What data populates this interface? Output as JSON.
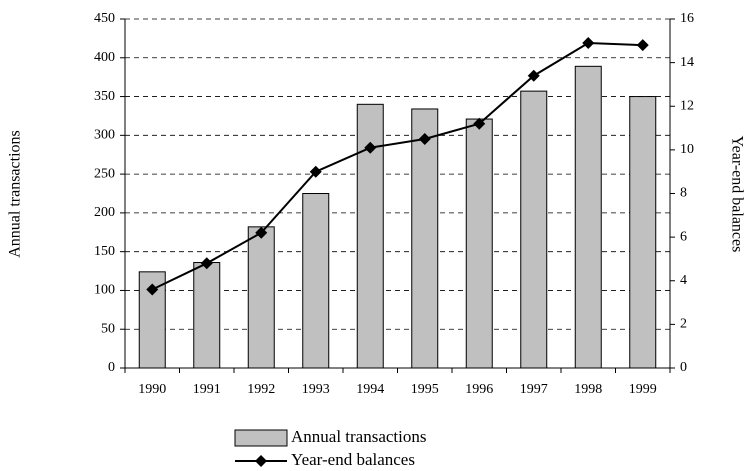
{
  "chart_data": {
    "type": "bar_line",
    "categories": [
      "1990",
      "1991",
      "1992",
      "1993",
      "1994",
      "1995",
      "1996",
      "1997",
      "1998",
      "1999"
    ],
    "ylabel": "Annual transactions",
    "y2label": "Year-end balances",
    "ylim": [
      0,
      450
    ],
    "yticks": [
      0,
      50,
      100,
      150,
      200,
      250,
      300,
      350,
      400,
      450
    ],
    "y2lim": [
      0,
      16
    ],
    "y2ticks": [
      0,
      2,
      4,
      6,
      8,
      10,
      12,
      14,
      16
    ],
    "grid": true,
    "series": [
      {
        "name": "Annual transactions",
        "type": "bar",
        "color": "#c0c0c0",
        "values": [
          124,
          136,
          182,
          225,
          340,
          334,
          321,
          357,
          389,
          350
        ]
      },
      {
        "name": "Year-end balances",
        "type": "line",
        "axis": "y2",
        "color": "#000000",
        "values": [
          3.6,
          4.8,
          6.2,
          9.0,
          10.1,
          10.5,
          11.2,
          13.4,
          14.9,
          14.8
        ]
      }
    ]
  }
}
